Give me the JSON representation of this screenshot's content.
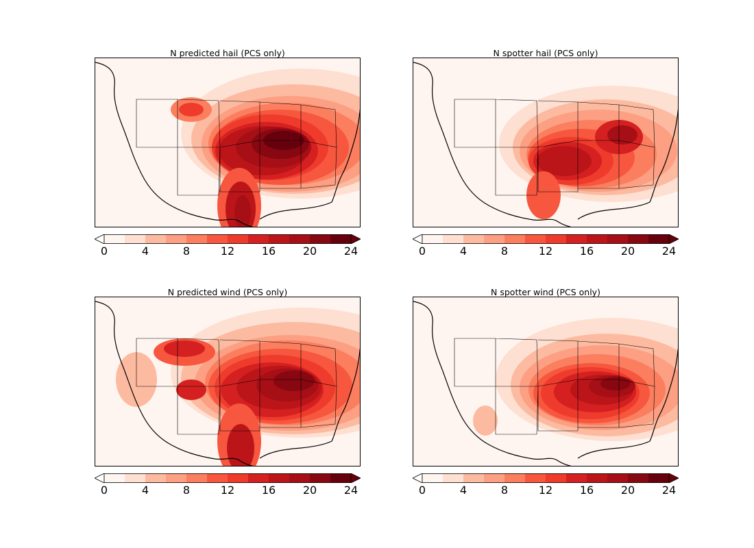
{
  "panels": [
    {
      "title": "N predicted hail (PCS only)",
      "variant": "pred_hail"
    },
    {
      "title": "N spotter hail (PCS only)",
      "variant": "spot_hail"
    },
    {
      "title": "N predicted wind (PCS only)",
      "variant": "pred_wind"
    },
    {
      "title": "N spotter wind (PCS only)",
      "variant": "spot_wind"
    }
  ],
  "colorbar": {
    "ticks": [
      "0",
      "4",
      "8",
      "12",
      "16",
      "20",
      "24"
    ],
    "min": 0,
    "max": 24,
    "levels": [
      0,
      2,
      4,
      6,
      8,
      10,
      12,
      14,
      16,
      18,
      20,
      22,
      24
    ],
    "colors": [
      "#fff5f0",
      "#fee0d2",
      "#fcbba1",
      "#fc9f83",
      "#fb7f5f",
      "#f6573e",
      "#ef3b2c",
      "#d42020",
      "#bb151a",
      "#a50f15",
      "#880811",
      "#67000d"
    ],
    "extend": "both"
  },
  "colormap": "Reds"
}
